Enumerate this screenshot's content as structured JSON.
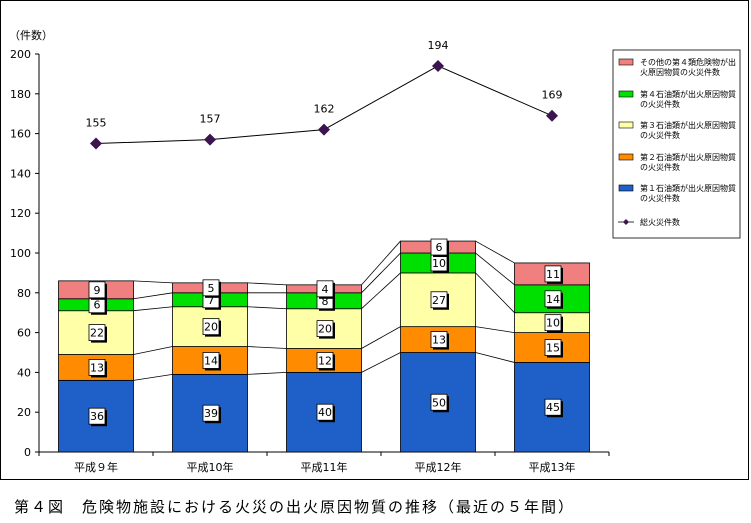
{
  "caption": "第４図　危険物施設における火災の出火原因物質の推移（最近の５年間）",
  "chart_data": {
    "type": "bar",
    "stacked": true,
    "unit_label": "（件数）",
    "categories": [
      "平成９年",
      "平成10年",
      "平成11年",
      "平成12年",
      "平成13年"
    ],
    "ylim": [
      0,
      200
    ],
    "yticks": [
      0,
      20,
      40,
      60,
      80,
      100,
      120,
      140,
      160,
      180,
      200
    ],
    "grid": false,
    "legend_position": "right",
    "series": [
      {
        "name": "第１石油類が出火原因物質の火災件数",
        "values": [
          36,
          39,
          40,
          50,
          45
        ],
        "color": "#1f5fc8"
      },
      {
        "name": "第２石油類が出火原因物質の火災件数",
        "values": [
          13,
          14,
          12,
          13,
          15
        ],
        "color": "#ff8c00"
      },
      {
        "name": "第３石油類が出火原因物質の火災件数",
        "values": [
          22,
          20,
          20,
          27,
          10
        ],
        "color": "#ffffa8"
      },
      {
        "name": "第４石油類が出火原因物質の火災件数",
        "values": [
          6,
          7,
          8,
          10,
          14
        ],
        "color": "#00e000"
      },
      {
        "name": "その他の第４類危険物が出火原因物質の火災件数",
        "values": [
          9,
          5,
          4,
          6,
          11
        ],
        "color": "#f08080"
      }
    ],
    "line_series": {
      "name": "総火災件数",
      "values": [
        155,
        157,
        162,
        194,
        169
      ],
      "color": "#3c1450"
    }
  }
}
